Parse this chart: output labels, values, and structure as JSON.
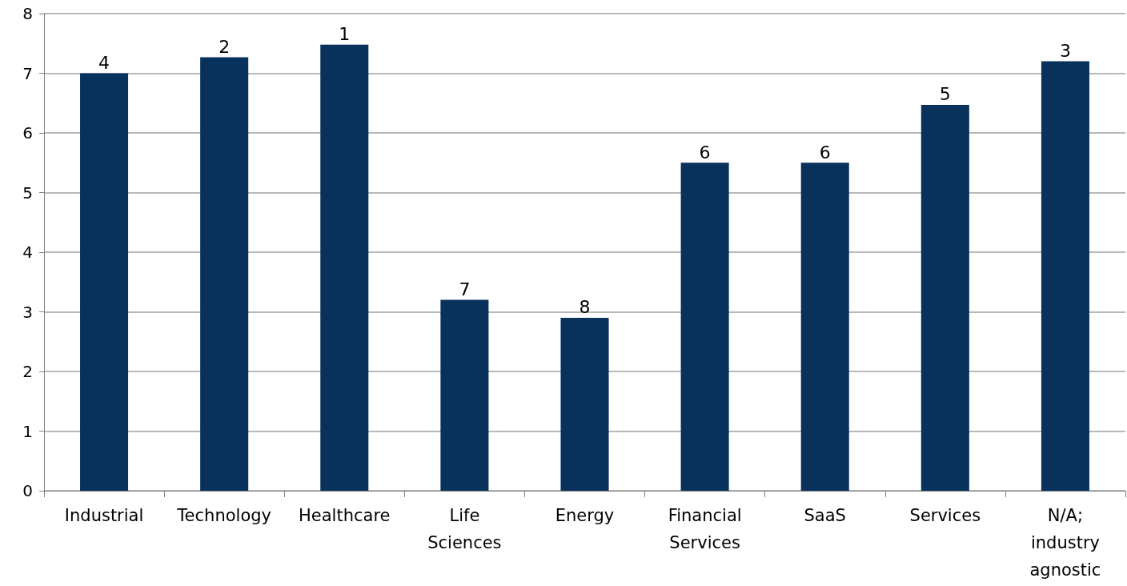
{
  "chart_data": {
    "type": "bar",
    "categories": [
      "Industrial",
      "Technology",
      "Healthcare",
      "Life Sciences",
      "Energy",
      "Financial Services",
      "SaaS",
      "Services",
      "N/A; industry agnostic"
    ],
    "values": [
      7.0,
      7.27,
      7.48,
      3.2,
      2.9,
      5.5,
      5.5,
      6.47,
      7.2
    ],
    "color": "#08315c",
    "annotations": [
      {
        "text": "4",
        "x": "Industrial",
        "y": 7.0
      },
      {
        "text": "2",
        "x": "Technology",
        "y": 7.27
      },
      {
        "text": "1",
        "x": "Healthcare",
        "y": 7.48
      },
      {
        "text": "7",
        "x": "Life Sciences",
        "y": 3.2
      },
      {
        "text": "8",
        "x": "Energy",
        "y": 2.9
      },
      {
        "text": "6",
        "x": "Financial Services",
        "y": 5.5
      },
      {
        "text": "6",
        "x": "SaaS",
        "y": 5.5
      },
      {
        "text": "5",
        "x": "Services",
        "y": 6.47
      },
      {
        "text": "3",
        "x": "N/A; industry agnostic",
        "y": 7.2
      }
    ],
    "ylim": [
      0,
      8
    ],
    "yticks": [
      0,
      1,
      2,
      3,
      4,
      5,
      6,
      7,
      8
    ],
    "grid": "y"
  }
}
